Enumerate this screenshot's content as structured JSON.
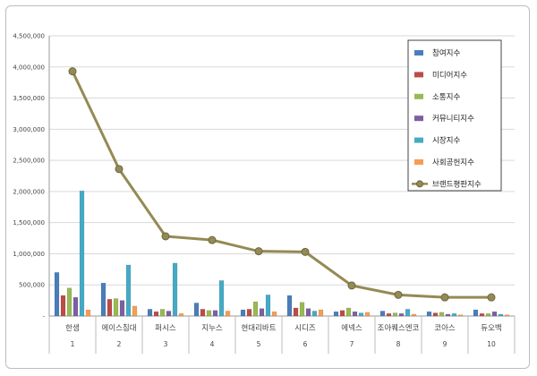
{
  "chart_data": {
    "type": "bar",
    "categories": [
      "한샘",
      "에이스침대",
      "퍼시스",
      "지누스",
      "현대리바트",
      "시디즈",
      "에넥스",
      "조아퀘스엔코",
      "코아스",
      "듀오백"
    ],
    "category_numbers": [
      "1",
      "2",
      "3",
      "4",
      "5",
      "6",
      "7",
      "8",
      "9",
      "10"
    ],
    "ylim": [
      0,
      4500000
    ],
    "yticks": [
      "-",
      "500,000",
      "1,000,000",
      "1,500,000",
      "2,000,000",
      "2,500,000",
      "3,000,000",
      "3,500,000",
      "4,000,000",
      "4,500,000"
    ],
    "ytick_values": [
      0,
      500000,
      1000000,
      1500000,
      2000000,
      2500000,
      3000000,
      3500000,
      4000000,
      4500000
    ],
    "grid": true,
    "legend_position": "top-right",
    "series": [
      {
        "name": "참여지수",
        "kind": "bar",
        "color": "#4a7ebb",
        "values": [
          700000,
          530000,
          110000,
          210000,
          100000,
          330000,
          70000,
          80000,
          70000,
          100000
        ]
      },
      {
        "name": "미디어지수",
        "kind": "bar",
        "color": "#be4b48",
        "values": [
          330000,
          270000,
          70000,
          110000,
          110000,
          130000,
          90000,
          40000,
          50000,
          40000
        ]
      },
      {
        "name": "소통지수",
        "kind": "bar",
        "color": "#98b954",
        "values": [
          450000,
          280000,
          110000,
          90000,
          230000,
          220000,
          130000,
          50000,
          60000,
          40000
        ]
      },
      {
        "name": "커뮤니티지수",
        "kind": "bar",
        "color": "#7d60a0",
        "values": [
          300000,
          250000,
          80000,
          90000,
          120000,
          120000,
          70000,
          40000,
          30000,
          70000
        ]
      },
      {
        "name": "시장지수",
        "kind": "bar",
        "color": "#46aac5",
        "values": [
          2010000,
          820000,
          850000,
          570000,
          340000,
          80000,
          50000,
          110000,
          40000,
          30000
        ]
      },
      {
        "name": "사회공헌지수",
        "kind": "bar",
        "color": "#f59d56",
        "values": [
          100000,
          160000,
          40000,
          80000,
          70000,
          100000,
          60000,
          30000,
          20000,
          20000
        ]
      },
      {
        "name": "브랜드평판지수",
        "kind": "line",
        "color": "#948a54",
        "values": [
          3930000,
          2360000,
          1280000,
          1220000,
          1040000,
          1030000,
          490000,
          340000,
          300000,
          300000
        ]
      }
    ]
  }
}
